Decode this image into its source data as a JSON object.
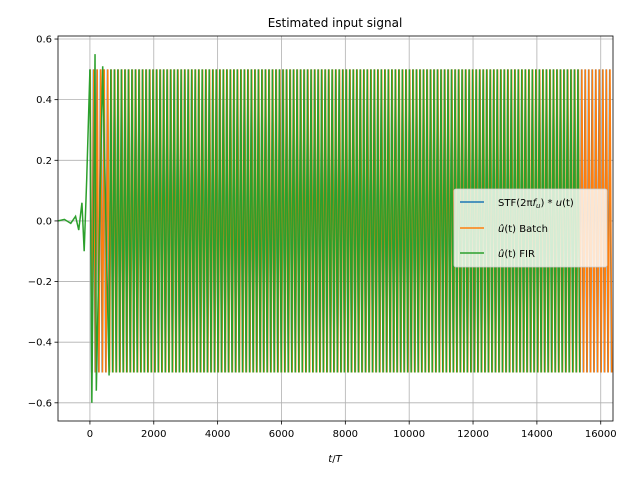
{
  "chart_data": {
    "type": "line",
    "title": "Estimated input signal",
    "xlabel": "t/T",
    "ylabel": "",
    "xlim": [
      -1000,
      16384
    ],
    "ylim": [
      -0.66,
      0.61
    ],
    "xticks": [
      0,
      2000,
      4000,
      6000,
      8000,
      10000,
      12000,
      14000,
      16000
    ],
    "xtick_labels": [
      "0",
      "2000",
      "4000",
      "6000",
      "8000",
      "10000",
      "12000",
      "14000",
      "16000"
    ],
    "yticks": [
      -0.6,
      -0.4,
      -0.2,
      0.0,
      0.2,
      0.4,
      0.6
    ],
    "ytick_labels": [
      "−0.6",
      "−0.4",
      "−0.2",
      "0.0",
      "0.2",
      "0.4",
      "0.6"
    ],
    "grid": true,
    "legend_position": "center-right",
    "series": [
      {
        "name": "STF(2πf_u) * u(t)",
        "legend_main": "STF(2π",
        "legend_f": "f",
        "legend_sub": "u",
        "legend_rest": ") * ",
        "legend_u": "u",
        "legend_t": "(t)",
        "color": "#1f77b4",
        "description": "sinusoid amplitude 0.5 from t≈0, visible only at end (hidden beneath other series)",
        "x_range": [
          0,
          16384
        ],
        "amplitude": 0.5
      },
      {
        "name": "û(t) Batch",
        "legend_main": "(t) Batch",
        "color": "#ff7f0e",
        "x_range": [
          0,
          16384
        ],
        "amplitude": 0.5
      },
      {
        "name": "û(t) FIR",
        "legend_main": "(t) FIR",
        "color": "#2ca02c",
        "x_range": [
          -1000,
          15350
        ],
        "amplitude": 0.5,
        "transient_points": [
          [
            -1000,
            0.0
          ],
          [
            -800,
            0.005
          ],
          [
            -600,
            -0.008
          ],
          [
            -450,
            0.015
          ],
          [
            -350,
            -0.03
          ],
          [
            -250,
            0.06
          ],
          [
            -180,
            -0.1
          ],
          [
            -100,
            0.14
          ],
          [
            0,
            0.5
          ],
          [
            60,
            -0.6
          ],
          [
            160,
            0.55
          ],
          [
            200,
            -0.56
          ],
          [
            400,
            0.51
          ],
          [
            600,
            -0.51
          ]
        ]
      }
    ]
  }
}
